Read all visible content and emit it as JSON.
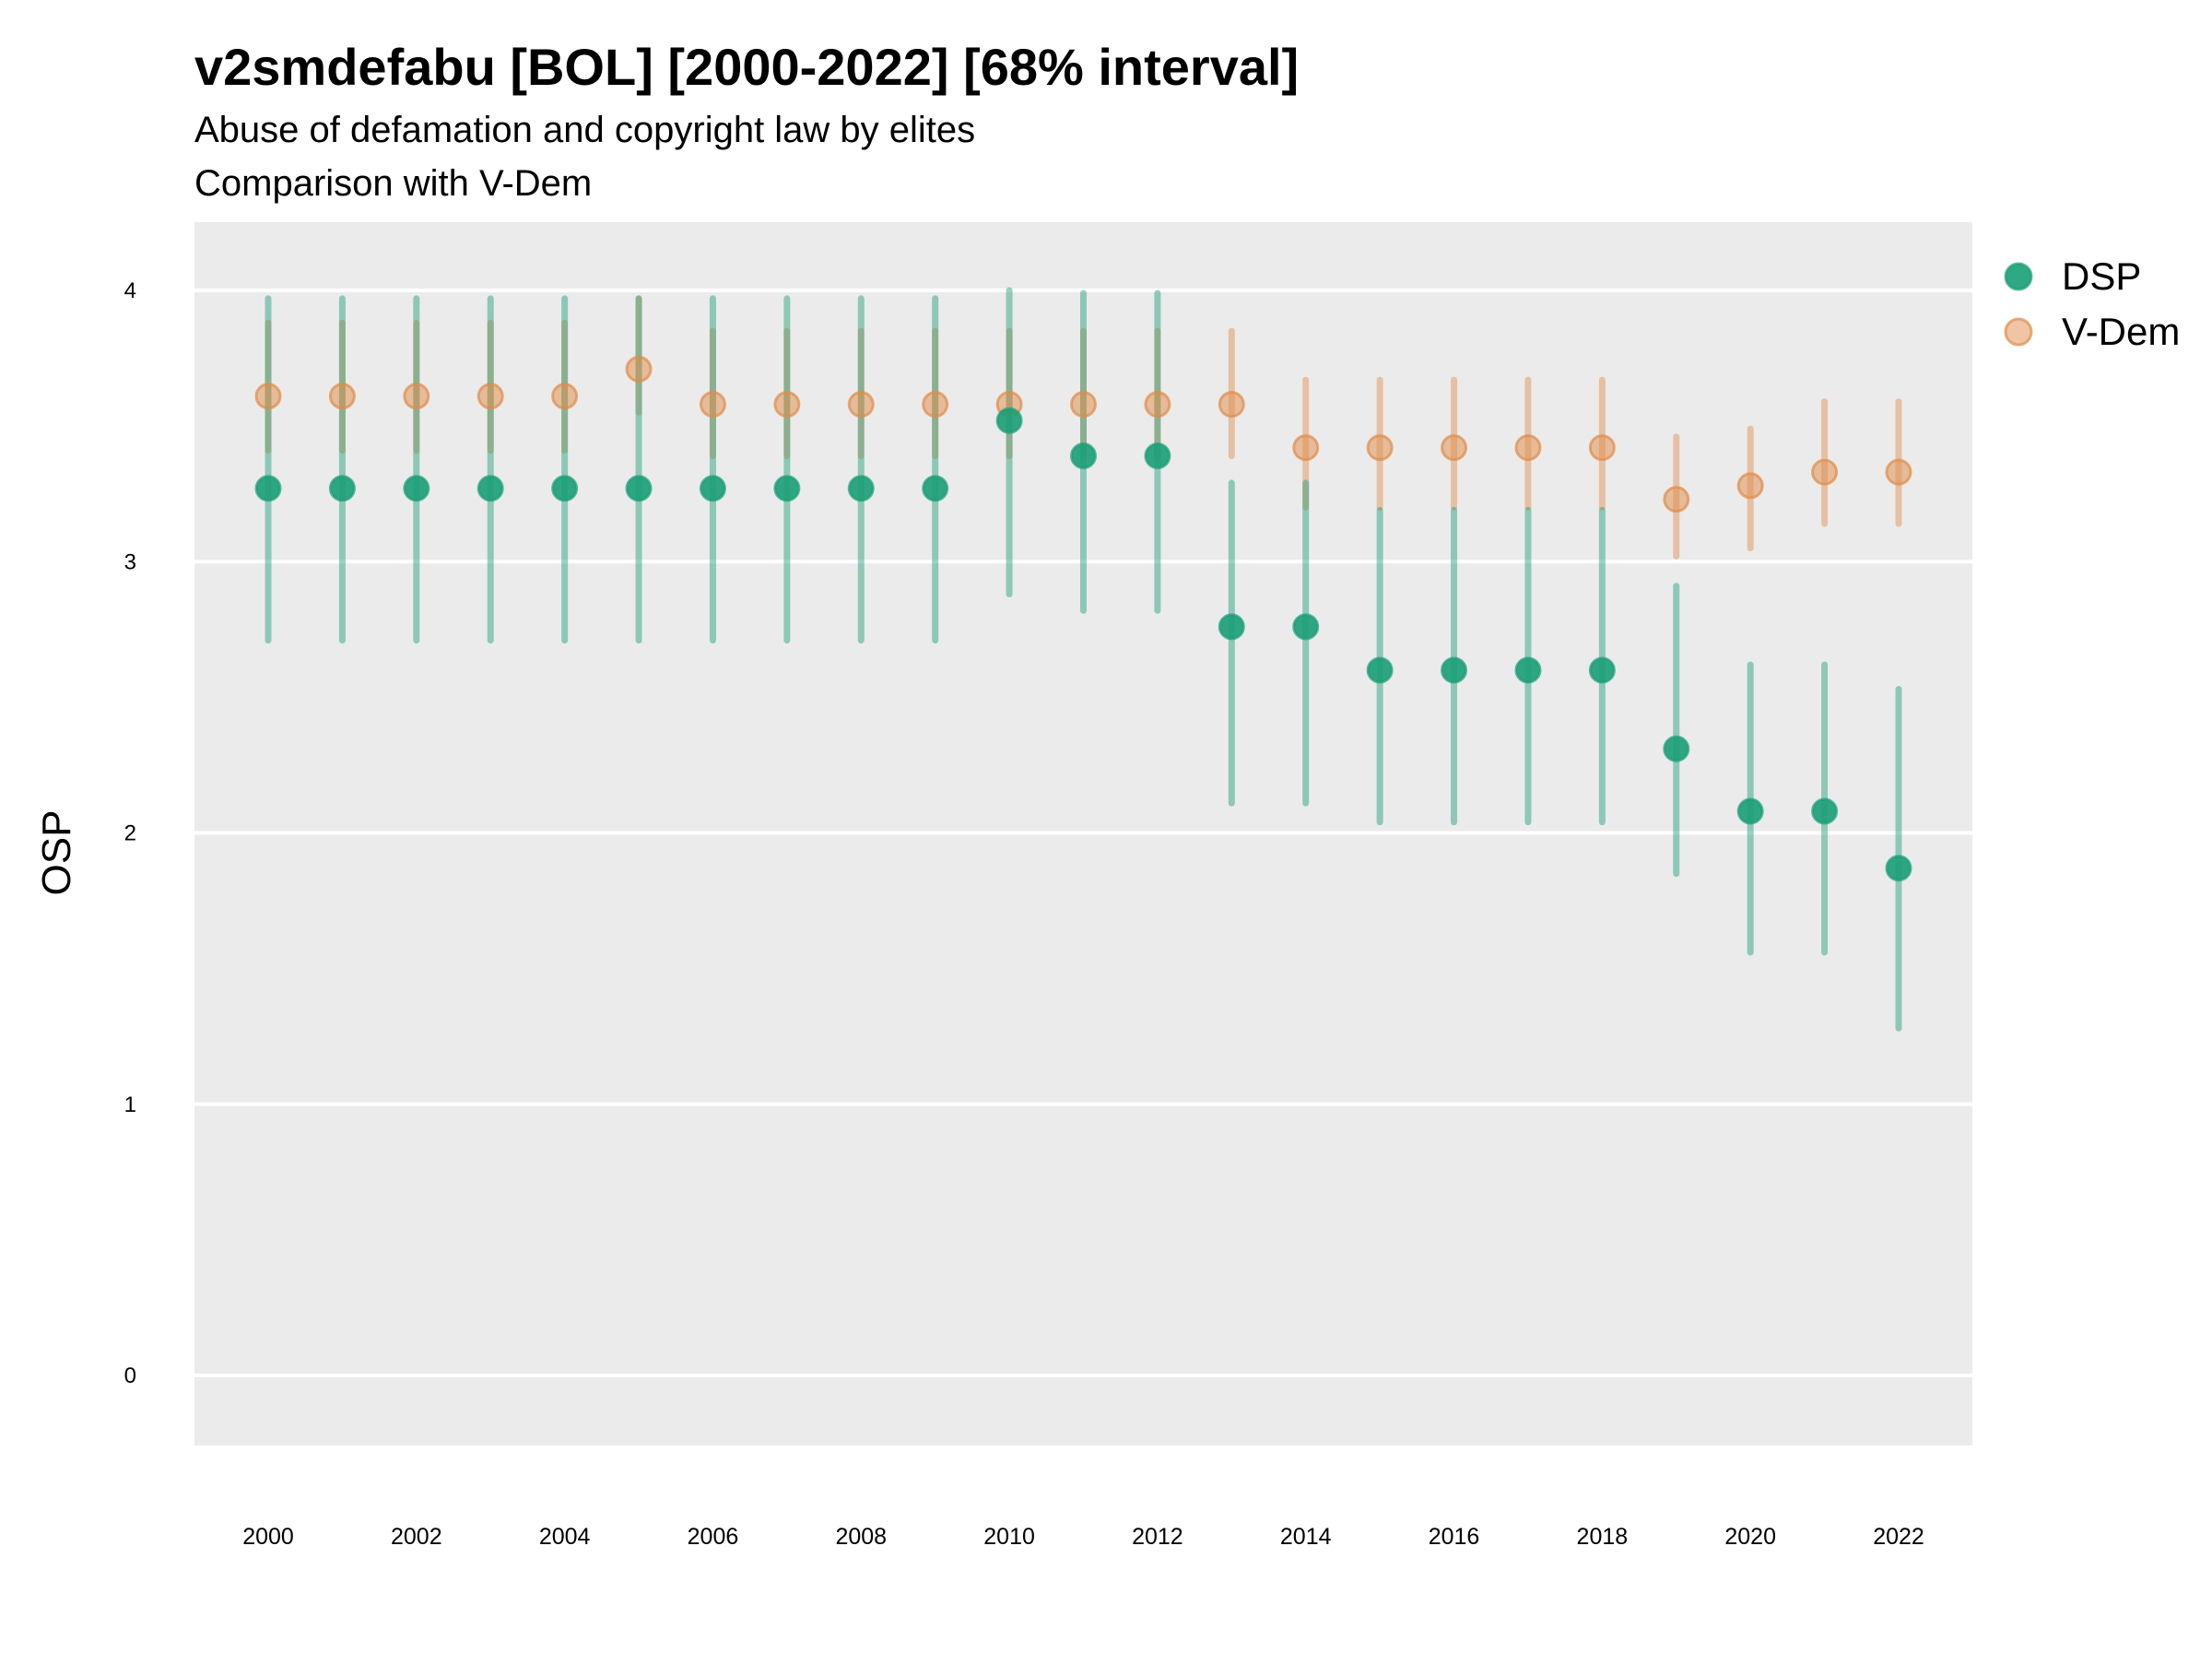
{
  "chart_data": {
    "type": "scatter",
    "title": "v2smdefabu [BOL] [2000-2022] [68% interval]",
    "subtitle": "Abuse of defamation and copyright law by elites",
    "subtitle2": "Comparison with V-Dem",
    "xlabel": "",
    "ylabel": "OSP",
    "ylim": [
      -0.25,
      4.25
    ],
    "xlim": [
      1999,
      2023
    ],
    "yticks": [
      "0",
      "1",
      "2",
      "3",
      "4"
    ],
    "xticks": [
      "2000",
      "2002",
      "2004",
      "2006",
      "2008",
      "2010",
      "2012",
      "2014",
      "2016",
      "2018",
      "2020",
      "2022"
    ],
    "grid": true,
    "legend_position": "right",
    "colors": {
      "DSP": "#1b9e77",
      "V-Dem": "#e08c4a",
      "panel": "#ebebeb"
    },
    "x": [
      2000,
      2001,
      2002,
      2003,
      2004,
      2005,
      2006,
      2007,
      2008,
      2009,
      2010,
      2011,
      2012,
      2013,
      2014,
      2015,
      2016,
      2017,
      2018,
      2019,
      2020,
      2021,
      2022
    ],
    "series": [
      {
        "name": "DSP",
        "values": [
          3.27,
          3.27,
          3.27,
          3.27,
          3.27,
          3.27,
          3.27,
          3.27,
          3.27,
          3.27,
          3.52,
          3.39,
          3.39,
          2.76,
          2.76,
          2.6,
          2.6,
          2.6,
          2.6,
          2.31,
          2.08,
          2.08,
          1.87
        ],
        "upper": [
          3.97,
          3.97,
          3.97,
          3.97,
          3.97,
          3.97,
          3.97,
          3.97,
          3.97,
          3.97,
          4.0,
          3.99,
          3.99,
          3.29,
          3.29,
          3.19,
          3.19,
          3.19,
          3.19,
          2.91,
          2.62,
          2.62,
          2.53
        ],
        "lower": [
          2.71,
          2.71,
          2.71,
          2.71,
          2.71,
          2.71,
          2.71,
          2.71,
          2.71,
          2.71,
          2.88,
          2.82,
          2.82,
          2.11,
          2.11,
          2.04,
          2.04,
          2.04,
          2.04,
          1.85,
          1.56,
          1.56,
          1.28
        ]
      },
      {
        "name": "V-Dem",
        "values": [
          3.61,
          3.61,
          3.61,
          3.61,
          3.61,
          3.71,
          3.58,
          3.58,
          3.58,
          3.58,
          3.58,
          3.58,
          3.58,
          3.58,
          3.42,
          3.42,
          3.42,
          3.42,
          3.42,
          3.23,
          3.28,
          3.33,
          3.33
        ],
        "upper": [
          3.88,
          3.88,
          3.88,
          3.88,
          3.88,
          3.97,
          3.85,
          3.85,
          3.85,
          3.85,
          3.85,
          3.85,
          3.85,
          3.85,
          3.67,
          3.67,
          3.67,
          3.67,
          3.67,
          3.46,
          3.49,
          3.59,
          3.59
        ],
        "lower": [
          3.41,
          3.41,
          3.41,
          3.41,
          3.41,
          3.55,
          3.39,
          3.39,
          3.39,
          3.39,
          3.39,
          3.39,
          3.39,
          3.39,
          3.2,
          3.2,
          3.2,
          3.2,
          3.2,
          3.02,
          3.05,
          3.14,
          3.14
        ]
      }
    ]
  }
}
